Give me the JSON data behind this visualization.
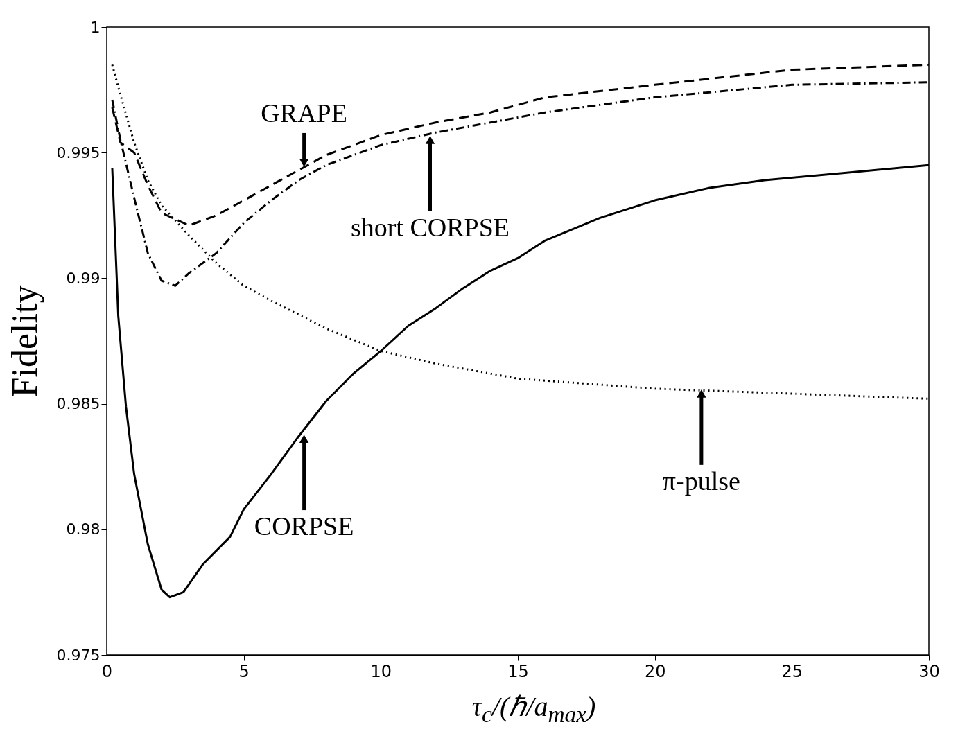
{
  "chart_data": {
    "type": "line",
    "xlabel": "τ$_{c}$/(ℏ/a$_{max}$)",
    "ylabel": "Fidelity",
    "xlim": [
      0,
      30
    ],
    "xticks": [
      0,
      5,
      10,
      15,
      20,
      25,
      30
    ],
    "ylim": [
      0.975,
      1
    ],
    "yticks": [
      0.975,
      0.98,
      0.985,
      0.99,
      0.995,
      1
    ],
    "grid": false,
    "marker": "none",
    "series": [
      {
        "color": "#000000",
        "line_style": "dashed",
        "x": [
          0.2,
          0.5,
          1,
          1.5,
          2,
          3,
          4,
          5,
          6,
          7,
          8,
          10,
          12,
          14,
          16,
          20,
          25,
          30
        ],
        "values": [
          0.9968,
          0.9954,
          0.995,
          0.9937,
          0.9926,
          0.9921,
          0.9925,
          0.9931,
          0.9937,
          0.9943,
          0.9949,
          0.9957,
          0.9962,
          0.9966,
          0.9972,
          0.9977,
          0.9983,
          0.9985
        ]
      },
      {
        "color": "#000000",
        "line_style": "dashdot",
        "x": [
          0.2,
          0.5,
          1,
          1.5,
          2,
          2.5,
          3,
          4,
          5,
          6,
          7,
          8,
          10,
          12,
          14,
          16,
          20,
          25,
          30
        ],
        "values": [
          0.9971,
          0.9955,
          0.9932,
          0.991,
          0.9899,
          0.9897,
          0.9902,
          0.991,
          0.9922,
          0.9931,
          0.9939,
          0.9945,
          0.9953,
          0.9958,
          0.9962,
          0.9966,
          0.9972,
          0.9977,
          0.9978
        ]
      },
      {
        "color": "#000000",
        "line_style": "solid",
        "x": [
          0.2,
          0.42,
          0.7,
          1,
          1.5,
          2,
          2.3,
          2.8,
          3.5,
          4.5,
          5,
          6,
          7,
          8,
          9,
          10,
          11,
          12,
          13,
          14,
          15,
          16,
          18,
          20,
          22,
          24,
          27,
          30
        ],
        "values": [
          0.9944,
          0.9885,
          0.9849,
          0.9822,
          0.9794,
          0.9776,
          0.9773,
          0.9775,
          0.9786,
          0.9797,
          0.9808,
          0.9822,
          0.9837,
          0.9851,
          0.9862,
          0.9871,
          0.9881,
          0.9888,
          0.9896,
          0.9903,
          0.9908,
          0.9915,
          0.9924,
          0.9931,
          0.9936,
          0.9939,
          0.9942,
          0.9945
        ]
      },
      {
        "color": "#000000",
        "line_style": "dotted",
        "x": [
          0.2,
          0.5,
          1,
          1.5,
          2,
          3,
          4,
          5,
          6,
          8,
          10,
          12,
          15,
          20,
          25,
          30
        ],
        "values": [
          0.9985,
          0.9973,
          0.9954,
          0.9939,
          0.9929,
          0.9917,
          0.9906,
          0.9897,
          0.9891,
          0.988,
          0.9871,
          0.9866,
          0.986,
          0.9856,
          0.9854,
          0.9852
        ]
      }
    ],
    "annotations": [
      {
        "text": "GRAPE",
        "x": 7.2,
        "y": 0.9944
      },
      {
        "text": "short CORPSE",
        "x": 11.8,
        "y": 0.9957
      },
      {
        "text": "CORPSE",
        "x": 7.2,
        "y": 0.9838
      },
      {
        "text": "π-pulse",
        "x": 21.7,
        "y": 0.9856
      }
    ]
  }
}
